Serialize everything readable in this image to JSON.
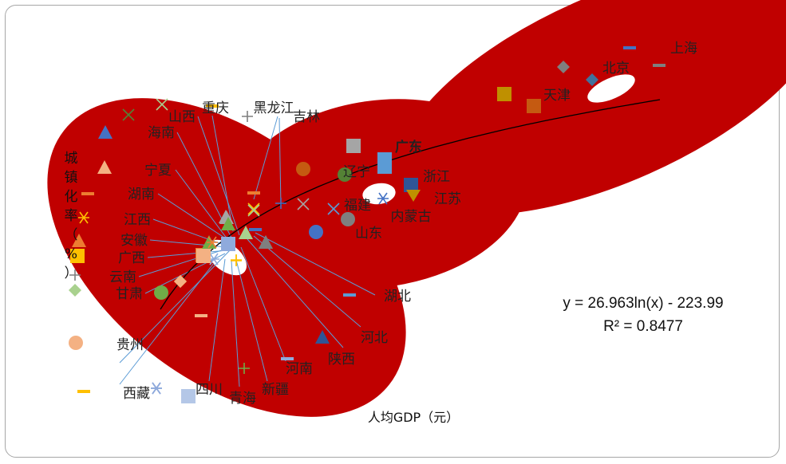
{
  "chart_data": {
    "type": "scatter",
    "xlabel": "人均GDP（元）",
    "ylabel": "城镇化率（%）",
    "trendline": {
      "equation": "y = 26.963ln(x) - 223.99",
      "r2": "R² = 0.8477",
      "a": 26.963,
      "b": -223.99
    },
    "points": [
      {
        "name": "上海",
        "color": "#4472c4",
        "marker": "dash"
      },
      {
        "name": "北京",
        "color": "#41719c",
        "marker": "diamond"
      },
      {
        "name": "天津",
        "color": "#c55a11",
        "marker": "square"
      },
      {
        "name": "广东",
        "color": "#5b9bd5",
        "marker": "square"
      },
      {
        "name": "浙江",
        "color": "#2f5597",
        "marker": "square"
      },
      {
        "name": "江苏",
        "color": "#bf9000",
        "marker": "triangle-down"
      },
      {
        "name": "辽宁",
        "color": "#548235",
        "marker": "circle"
      },
      {
        "name": "福建",
        "color": "#5b9bd5",
        "marker": "x"
      },
      {
        "name": "内蒙古",
        "color": "#4472c4",
        "marker": "star"
      },
      {
        "name": "山东",
        "color": "#7f7f7f",
        "marker": "circle"
      },
      {
        "name": "吉林",
        "color": "#4472c4",
        "marker": "plus"
      },
      {
        "name": "黑龙江",
        "color": "#ed7d31",
        "marker": "dash"
      },
      {
        "name": "重庆",
        "color": "#ffc000",
        "marker": "dash"
      },
      {
        "name": "山西",
        "color": "#a9d18e",
        "marker": "x"
      },
      {
        "name": "海南",
        "color": "#a5a5a5",
        "marker": "triangle"
      },
      {
        "name": "宁夏",
        "color": "#70ad47",
        "marker": "triangle"
      },
      {
        "name": "湖南",
        "color": "#4472c4",
        "marker": "dash"
      },
      {
        "name": "江西",
        "color": "#ed7d31",
        "marker": "star"
      },
      {
        "name": "安徽",
        "color": "#8faadc",
        "marker": "square"
      },
      {
        "name": "广西",
        "color": "#f4b183",
        "marker": "square"
      },
      {
        "name": "云南",
        "color": "#f4b183",
        "marker": "diamond"
      },
      {
        "name": "甘肃",
        "color": "#70ad47",
        "marker": "circle"
      },
      {
        "name": "贵州",
        "color": "#f4b183",
        "marker": "dash"
      },
      {
        "name": "西藏",
        "color": "#8faadc",
        "marker": "star"
      },
      {
        "name": "四川",
        "color": "#b4c7e7",
        "marker": "square"
      },
      {
        "name": "青海",
        "color": "#ffc000",
        "marker": "plus"
      },
      {
        "name": "新疆",
        "color": "#70ad47",
        "marker": "plus"
      },
      {
        "name": "河南",
        "color": "#8faadc",
        "marker": "dash"
      },
      {
        "name": "陕西",
        "color": "#2f5597",
        "marker": "triangle"
      },
      {
        "name": "河北",
        "color": "#7f7f7f",
        "marker": "triangle"
      },
      {
        "name": "湖北",
        "color": "#5b9bd5",
        "marker": "dash"
      }
    ],
    "highlighted": [
      "广东"
    ],
    "highlight_color": "#c00000",
    "grid": false,
    "legend": "none"
  }
}
